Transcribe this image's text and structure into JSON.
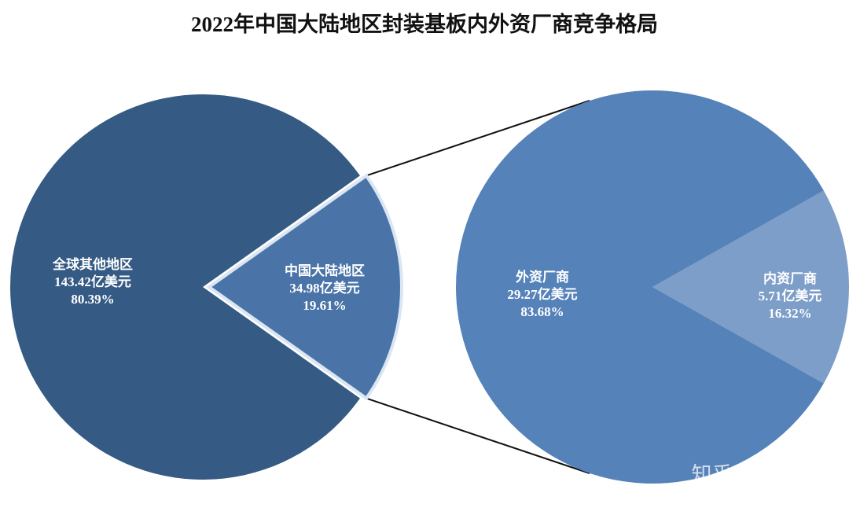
{
  "chart_data": [
    {
      "type": "pie",
      "title": "2022年中国大陆地区封装基板内外资厂商竞争格局",
      "categories": [
        "全球其他地区",
        "中国大陆地区"
      ],
      "values": [
        80.39,
        19.61
      ],
      "value_labels": [
        "80.39%",
        "19.61%"
      ],
      "amounts": [
        143.42,
        34.98
      ],
      "amount_labels": [
        "143.42亿美元",
        "34.98亿美元"
      ],
      "colors": [
        "#355a84",
        "#4a74a8"
      ]
    },
    {
      "type": "pie",
      "categories": [
        "外资厂商",
        "内资厂商"
      ],
      "values": [
        83.68,
        16.32
      ],
      "value_labels": [
        "83.68%",
        "16.32%"
      ],
      "amounts": [
        29.27,
        5.71
      ],
      "amount_labels": [
        "29.27亿美元",
        "5.71亿美元"
      ],
      "colors": [
        "#5582b8",
        "#7d9ec8"
      ]
    }
  ],
  "watermark": "知乎 @清蒸荟"
}
